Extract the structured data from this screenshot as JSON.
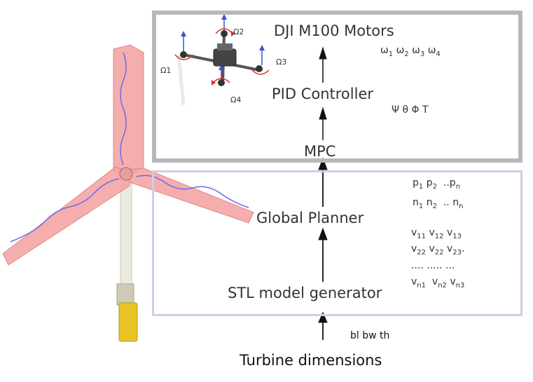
{
  "blocks": {
    "motors": "DJI M100 Motors",
    "pid": "PID Controller",
    "mpc": "MPC",
    "planner": "Global Planner",
    "stl": "STL model generator",
    "turbine": "Turbine dimensions"
  },
  "signals": {
    "omega": [
      "ω",
      "1",
      "ω",
      "2",
      "ω",
      "3",
      "ω",
      "4"
    ],
    "attitude": "Ψ θ Φ T",
    "p_row": [
      "p",
      "1",
      "p",
      "2",
      "..p",
      "n"
    ],
    "n_row": [
      "n",
      "1",
      "n",
      "2",
      ".. n",
      "n"
    ],
    "v_row1": [
      "v",
      "11",
      "v",
      "12",
      "v",
      "13"
    ],
    "v_row2": [
      "v",
      "22",
      "v",
      "22",
      "v",
      "23",
      "."
    ],
    "v_row3": ".... ..... ...",
    "v_row4": [
      "v",
      "n1",
      "v",
      "n2",
      "v",
      "n3"
    ],
    "dims": "bl bw th"
  },
  "drone_labels": {
    "o1": "Ω1",
    "o2": "Ω2",
    "o3": "Ω3",
    "o4": "Ω4"
  },
  "colors": {
    "top_border": "#b8b8b8",
    "bottom_border": "#cfd0e4",
    "blade_fill": "#f2a0a0",
    "path": "#6a6ae8",
    "tower": "#e8e6dc",
    "nacelle": "#e8c020"
  }
}
